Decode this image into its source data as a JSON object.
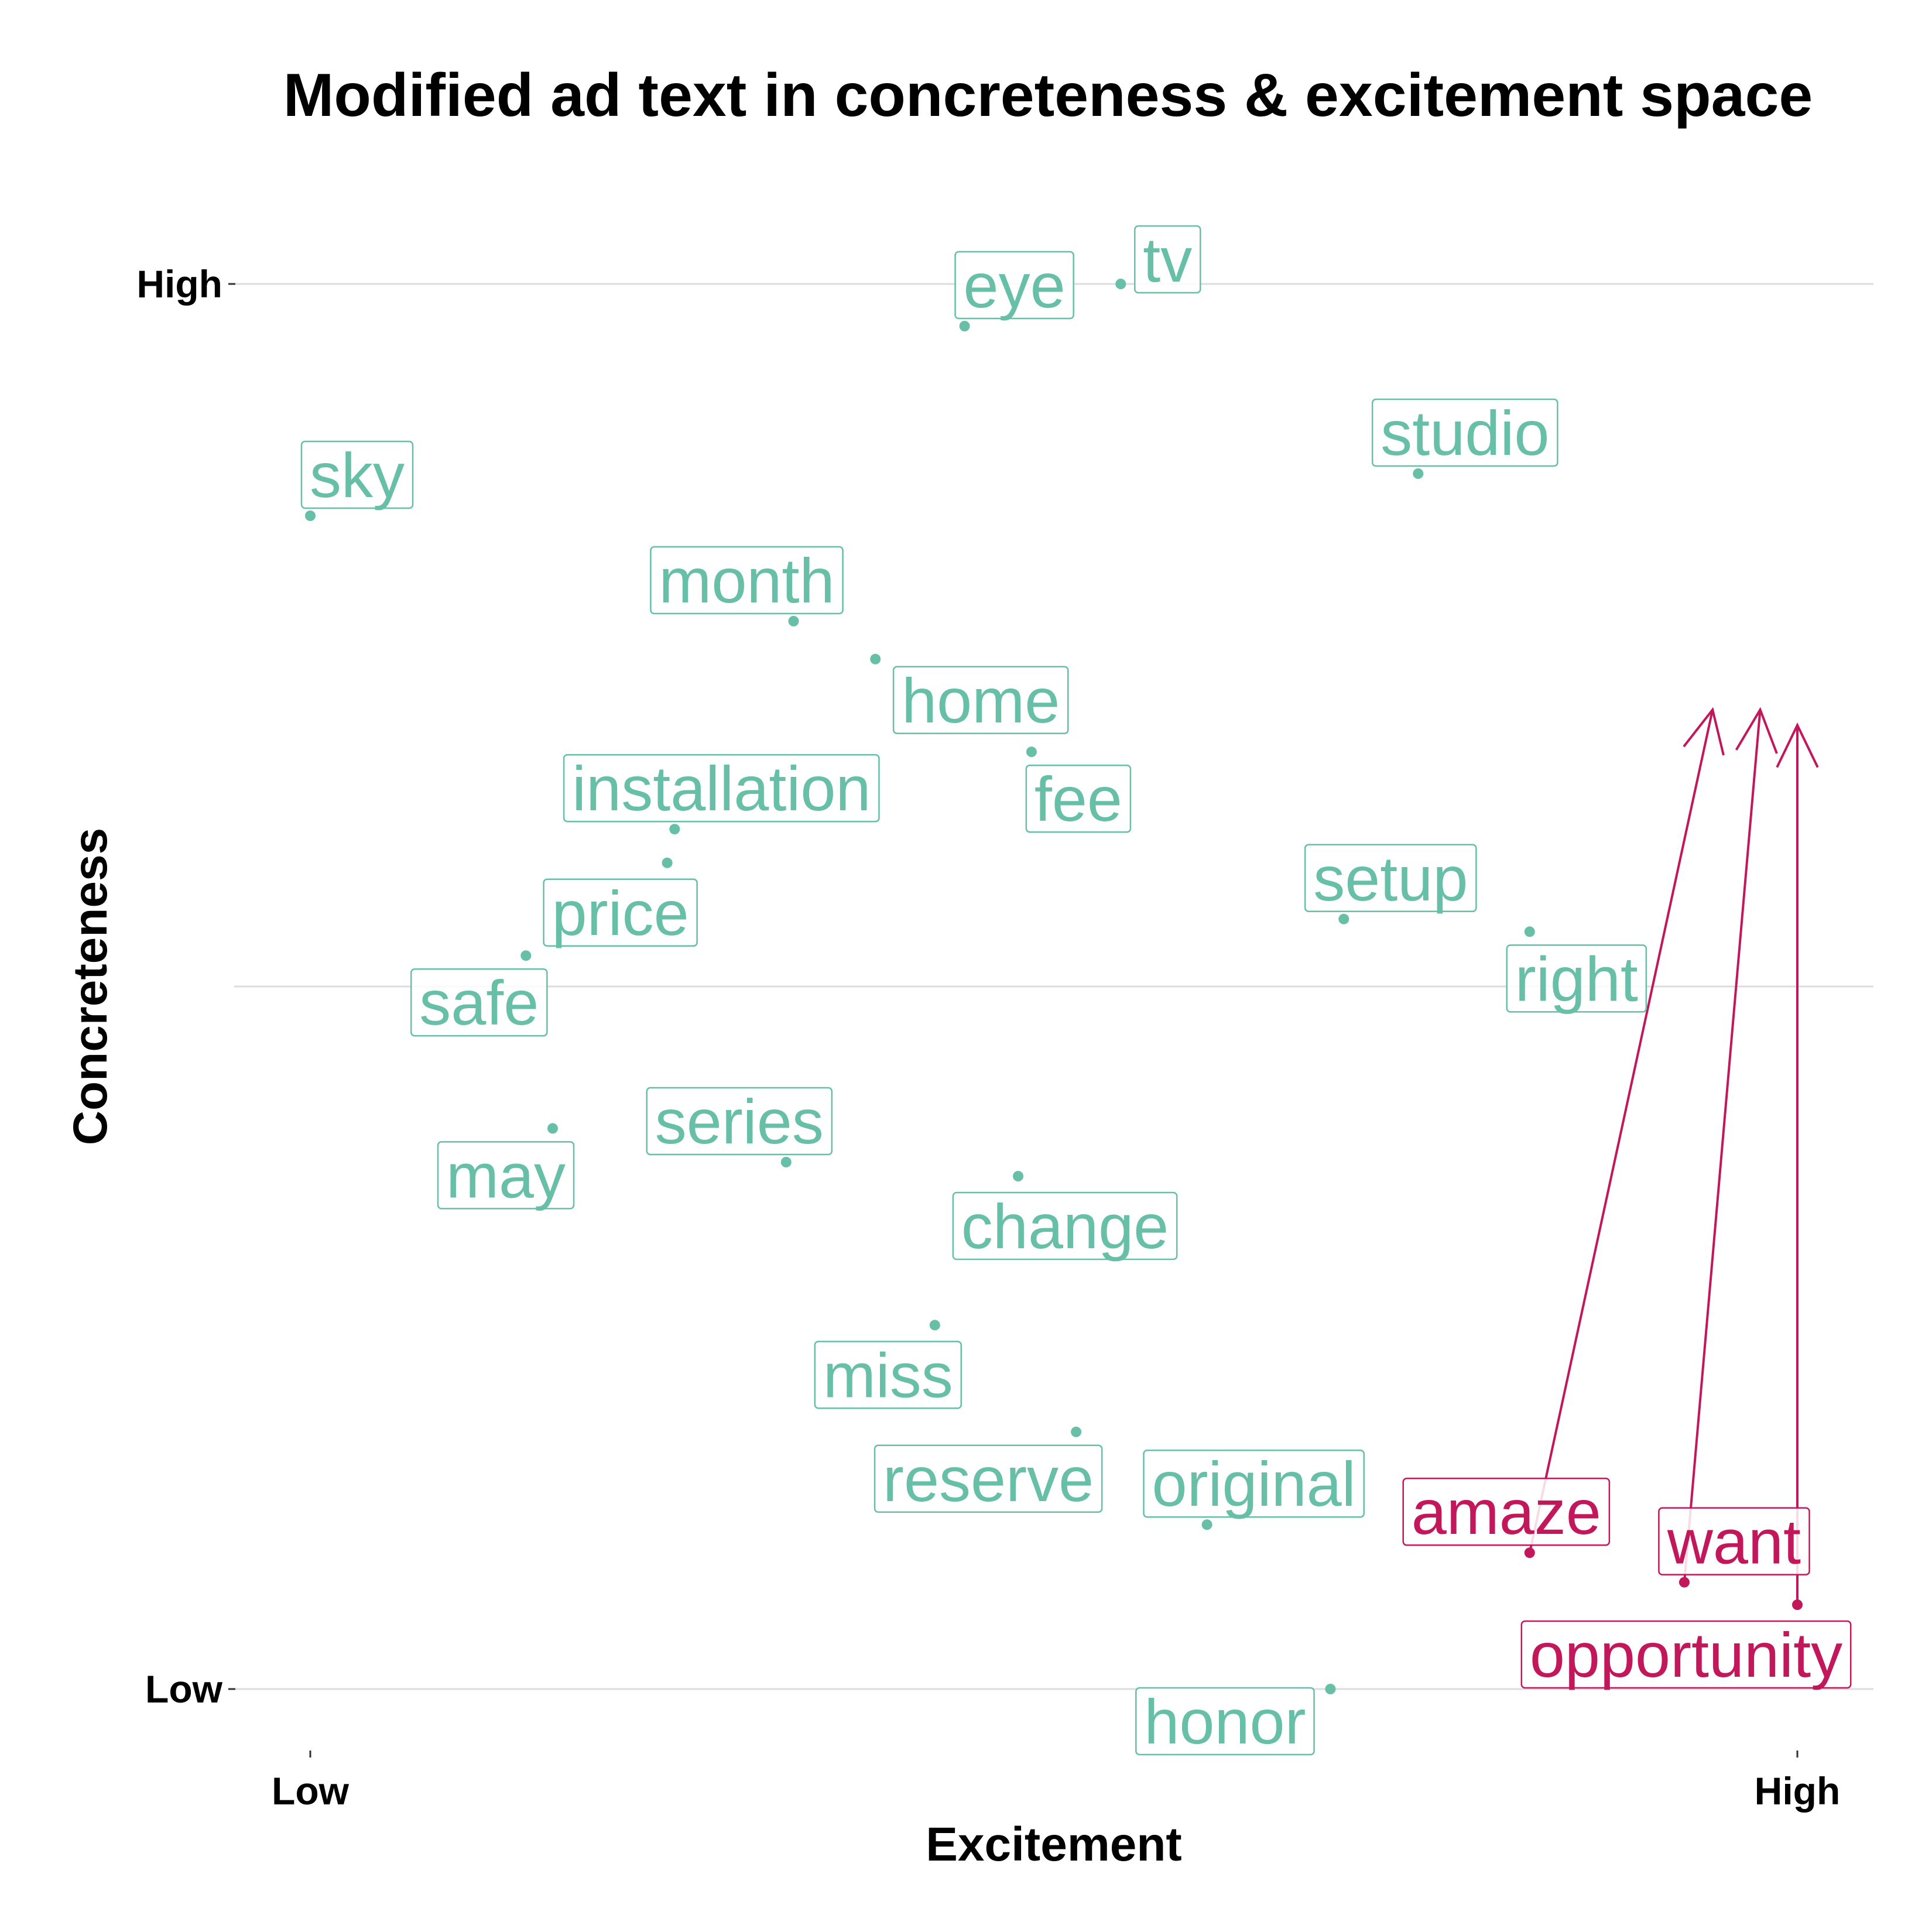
{
  "chart_data": {
    "type": "scatter",
    "title": "Modified ad text in concreteness & excitement space",
    "xlabel": "Excitement",
    "ylabel": "Concreteness",
    "xlim": [
      0,
      1
    ],
    "ylim": [
      0,
      1
    ],
    "x_ticks": [
      {
        "value": 0,
        "label": "Low"
      },
      {
        "value": 1,
        "label": "High"
      }
    ],
    "y_ticks": [
      {
        "value": 0,
        "label": "Low"
      },
      {
        "value": 0.5,
        "label": ""
      },
      {
        "value": 1,
        "label": "High"
      }
    ],
    "grid": "horizontal",
    "colors": {
      "unchanged": "#66bfa6",
      "modified": "#c2185b"
    },
    "points": [
      {
        "word": "tv",
        "x": 0.545,
        "y": 1.0,
        "group": "unchanged"
      },
      {
        "word": "eye",
        "x": 0.44,
        "y": 0.97,
        "group": "unchanged"
      },
      {
        "word": "studio",
        "x": 0.745,
        "y": 0.865,
        "group": "unchanged"
      },
      {
        "word": "sky",
        "x": 0.0,
        "y": 0.835,
        "group": "unchanged"
      },
      {
        "word": "month",
        "x": 0.325,
        "y": 0.76,
        "group": "unchanged"
      },
      {
        "word": "home",
        "x": 0.38,
        "y": 0.733,
        "group": "unchanged"
      },
      {
        "word": "fee",
        "x": 0.485,
        "y": 0.667,
        "group": "unchanged"
      },
      {
        "word": "installation",
        "x": 0.245,
        "y": 0.612,
        "group": "unchanged"
      },
      {
        "word": "price",
        "x": 0.24,
        "y": 0.588,
        "group": "unchanged"
      },
      {
        "word": "setup",
        "x": 0.695,
        "y": 0.548,
        "group": "unchanged"
      },
      {
        "word": "right",
        "x": 0.82,
        "y": 0.539,
        "group": "unchanged"
      },
      {
        "word": "safe",
        "x": 0.145,
        "y": 0.522,
        "group": "unchanged"
      },
      {
        "word": "may",
        "x": 0.163,
        "y": 0.399,
        "group": "unchanged"
      },
      {
        "word": "series",
        "x": 0.32,
        "y": 0.375,
        "group": "unchanged"
      },
      {
        "word": "change",
        "x": 0.476,
        "y": 0.365,
        "group": "unchanged"
      },
      {
        "word": "miss",
        "x": 0.42,
        "y": 0.259,
        "group": "unchanged"
      },
      {
        "word": "reserve",
        "x": 0.515,
        "y": 0.183,
        "group": "unchanged"
      },
      {
        "word": "original",
        "x": 0.603,
        "y": 0.117,
        "group": "unchanged"
      },
      {
        "word": "honor",
        "x": 0.686,
        "y": 0.0,
        "group": "unchanged"
      },
      {
        "word": "amaze",
        "x": 0.82,
        "y": 0.097,
        "group": "modified",
        "arrow_to": {
          "x": 0.943,
          "y": 0.697
        }
      },
      {
        "word": "want",
        "x": 0.924,
        "y": 0.076,
        "group": "modified",
        "arrow_to": {
          "x": 0.975,
          "y": 0.697
        }
      },
      {
        "word": "opportunity",
        "x": 1.0,
        "y": 0.06,
        "group": "modified",
        "arrow_to": {
          "x": 1.0,
          "y": 0.686
        }
      }
    ]
  }
}
